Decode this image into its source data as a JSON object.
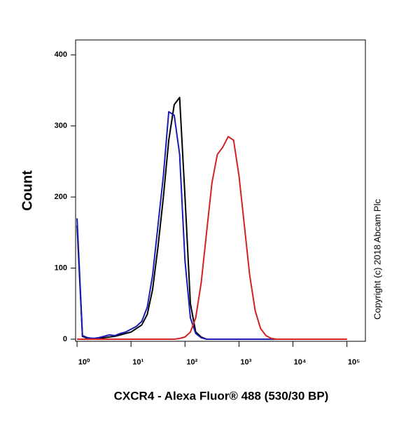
{
  "chart_data": {
    "type": "line",
    "y_label": "Count",
    "x_label": "CXCR4 - Alexa Fluor® 488 (530/30 BP)",
    "annotation": "Copyright (c) 2018 Abcam Plc",
    "x_log": true,
    "x": [
      1,
      1.26,
      1.58,
      2,
      2.51,
      3.16,
      3.98,
      5.01,
      6.31,
      7.94,
      10,
      12.6,
      15.8,
      20,
      25.1,
      31.6,
      39.8,
      50.1,
      63.1,
      79.4,
      100,
      126,
      158,
      200,
      251,
      316,
      398,
      501,
      631,
      794,
      1000,
      1260,
      1580,
      2000,
      2510,
      3160,
      3980,
      5010,
      6310,
      7940,
      10000,
      12600,
      15800,
      20000,
      25100,
      31600,
      39800,
      50100,
      63100,
      79400,
      100000
    ],
    "series": [
      {
        "color": "#000000",
        "values": [
          160,
          4,
          1,
          1,
          1,
          2,
          3,
          4,
          6,
          8,
          10,
          15,
          20,
          35,
          70,
          130,
          200,
          280,
          330,
          340,
          200,
          50,
          10,
          3,
          0,
          0,
          0,
          0,
          0,
          0,
          0,
          0,
          0,
          0,
          0,
          0,
          0,
          0,
          0,
          0,
          0,
          0,
          0,
          0,
          0,
          0,
          0,
          0,
          0,
          0,
          0
        ]
      },
      {
        "color": "#1a1ab4",
        "values": [
          170,
          5,
          2,
          1,
          2,
          4,
          6,
          5,
          8,
          10,
          14,
          18,
          25,
          45,
          90,
          160,
          230,
          320,
          315,
          260,
          110,
          30,
          8,
          2,
          0,
          0,
          0,
          0,
          0,
          0,
          0,
          0,
          0,
          0,
          0,
          0,
          0,
          0,
          0,
          0,
          0,
          0,
          0,
          0,
          0,
          0,
          0,
          0,
          0,
          0,
          0
        ]
      },
      {
        "color": "#d42020",
        "values": [
          0,
          0,
          0,
          0,
          0,
          0,
          0,
          0,
          0,
          0,
          0,
          0,
          0,
          0,
          0,
          0,
          0,
          0,
          0,
          1,
          3,
          10,
          30,
          80,
          150,
          220,
          260,
          270,
          285,
          280,
          230,
          160,
          90,
          40,
          15,
          5,
          1,
          0,
          0,
          0,
          0,
          0,
          0,
          0,
          0,
          0,
          0,
          0,
          0,
          0,
          0
        ]
      }
    ],
    "xlim": [
      0.94,
      220000
    ],
    "xticks": [
      {
        "value": 1,
        "label": "10⁰"
      },
      {
        "value": 10,
        "label": "10¹"
      },
      {
        "value": 100,
        "label": "10²"
      },
      {
        "value": 1000,
        "label": "10³"
      },
      {
        "value": 10000,
        "label": "10⁴"
      },
      {
        "value": 100000,
        "label": "10⁵"
      }
    ],
    "ylim": [
      -3,
      421
    ],
    "yticks": [
      0,
      100,
      200,
      300,
      400
    ]
  }
}
